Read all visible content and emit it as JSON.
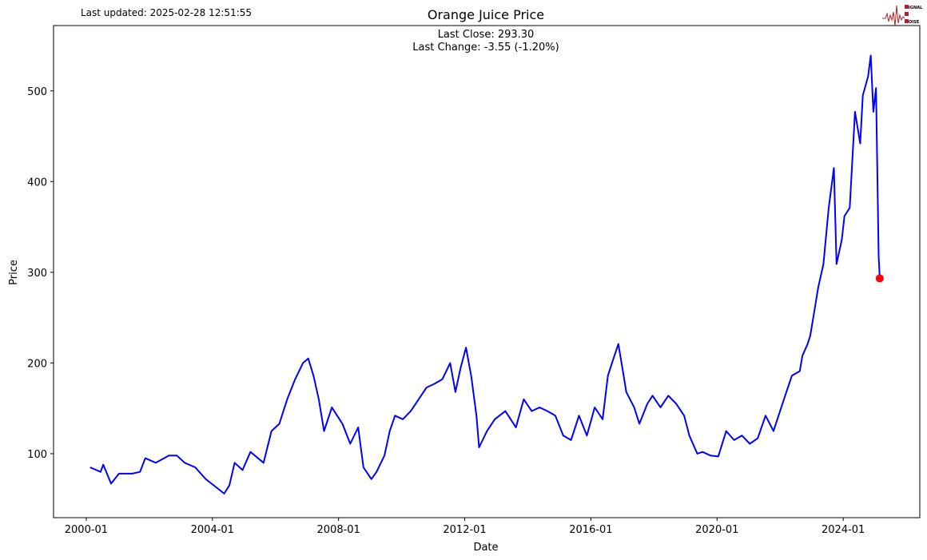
{
  "header": {
    "last_updated": "Last updated: 2025-02-28 12:51:55",
    "logo_text": [
      "SIGNAL",
      "2",
      "NOISE"
    ]
  },
  "chart_data": {
    "type": "line",
    "title": "Orange Juice Price",
    "xlabel": "Date",
    "ylabel": "Price",
    "annotations": [
      "Last Close: 293.30",
      "Last Change: -3.55 (-1.20%)"
    ],
    "xlim": [
      "1998-12-18",
      "2026-06-05"
    ],
    "ylim": [
      29.5,
      572
    ],
    "x_ticks": [
      "2000-01",
      "2004-01",
      "2008-01",
      "2012-01",
      "2016-01",
      "2020-01",
      "2024-01"
    ],
    "y_ticks": [
      100,
      200,
      300,
      400,
      500
    ],
    "grid": false,
    "line_color": "#0000ff",
    "last_point_color": "#ff0000",
    "last_point": {
      "x": "2025-02-28",
      "y": 293.3
    },
    "series": [
      {
        "x": [
          "2000-02",
          "2000-06",
          "2000-07",
          "2000-10",
          "2001-01",
          "2001-06",
          "2001-09",
          "2001-11",
          "2002-03",
          "2002-08",
          "2002-11",
          "2003-02",
          "2003-06",
          "2003-10",
          "2004-02",
          "2004-05",
          "2004-07",
          "2004-09",
          "2004-12",
          "2005-03",
          "2005-08",
          "2005-11",
          "2006-02",
          "2006-05",
          "2006-08",
          "2006-11",
          "2007-01",
          "2007-03",
          "2007-05",
          "2007-07",
          "2007-10",
          "2007-12",
          "2008-02",
          "2008-05",
          "2008-08",
          "2008-10",
          "2009-01",
          "2009-03",
          "2009-06",
          "2009-08",
          "2009-10",
          "2010-01",
          "2010-04",
          "2010-07",
          "2010-10",
          "2011-01",
          "2011-04",
          "2011-07",
          "2011-09",
          "2011-11",
          "2012-01",
          "2012-03",
          "2012-05",
          "2012-06",
          "2012-09",
          "2012-12",
          "2013-04",
          "2013-08",
          "2013-11",
          "2014-02",
          "2014-05",
          "2014-08",
          "2014-11",
          "2015-02",
          "2015-05",
          "2015-08",
          "2015-11",
          "2016-02",
          "2016-05",
          "2016-07",
          "2016-09",
          "2016-11",
          "2017-01",
          "2017-02",
          "2017-05",
          "2017-07",
          "2017-10",
          "2017-12",
          "2018-03",
          "2018-06",
          "2018-09",
          "2018-12",
          "2019-02",
          "2019-05",
          "2019-07",
          "2019-10",
          "2020-01",
          "2020-04",
          "2020-07",
          "2020-10",
          "2021-01",
          "2021-04",
          "2021-07",
          "2021-10",
          "2022-02",
          "2022-05",
          "2022-08",
          "2022-09",
          "2022-11",
          "2022-12",
          "2023-02",
          "2023-03",
          "2023-05",
          "2023-07",
          "2023-09",
          "2023-10",
          "2023-12",
          "2024-01",
          "2024-03",
          "2024-05",
          "2024-07",
          "2024-08",
          "2024-10",
          "2024-11",
          "2024-12",
          "2025-01",
          "2025-02",
          "2025-02-28"
        ],
        "y": [
          85,
          80,
          88,
          67,
          78,
          78,
          80,
          95,
          90,
          98,
          98,
          90,
          85,
          72,
          63,
          56,
          65,
          90,
          82,
          102,
          90,
          125,
          133,
          160,
          182,
          200,
          205,
          186,
          160,
          125,
          151,
          142,
          133,
          111,
          129,
          85,
          72,
          80,
          98,
          125,
          142,
          138,
          147,
          160,
          173,
          177,
          182,
          200,
          168,
          195,
          217,
          186,
          142,
          107,
          125,
          138,
          147,
          129,
          160,
          147,
          151,
          147,
          142,
          120,
          115,
          142,
          120,
          151,
          138,
          186,
          204,
          221,
          186,
          168,
          151,
          133,
          155,
          164,
          151,
          164,
          155,
          142,
          120,
          100,
          102,
          98,
          97,
          125,
          115,
          120,
          111,
          117,
          142,
          125,
          160,
          186,
          191,
          208,
          221,
          230,
          265,
          283,
          309,
          371,
          415,
          309,
          336,
          362,
          371,
          477,
          442,
          495,
          516,
          539,
          477,
          503,
          318,
          293.3
        ]
      }
    ]
  }
}
